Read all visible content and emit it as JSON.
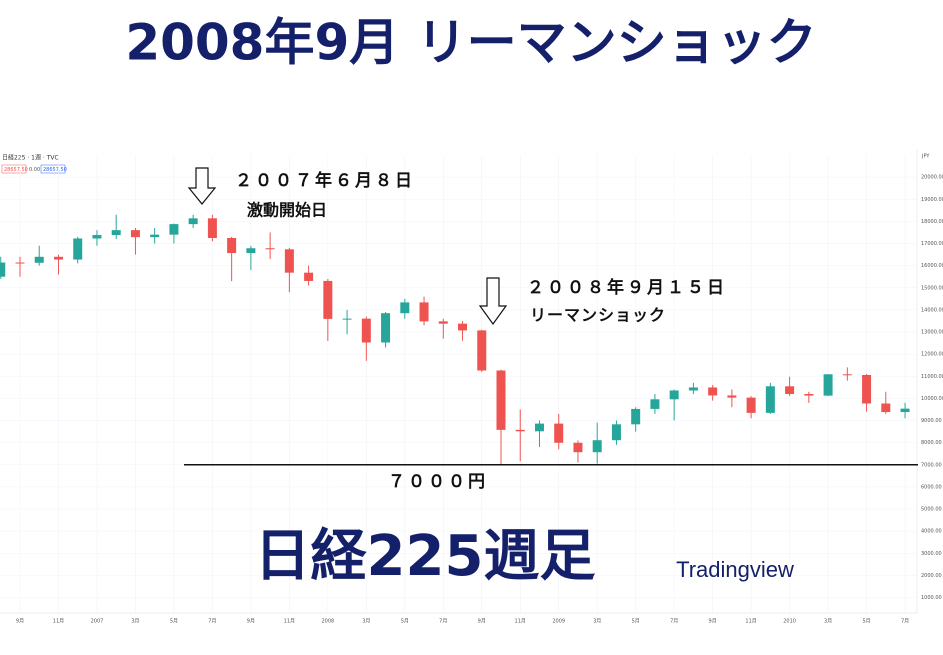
{
  "chart_data": {
    "type": "candlestick",
    "title": "2008年9月 リーマンショック",
    "subtitle": "日経225週足",
    "source": "Tradingview",
    "symbol": "日経225 · 1週 · TVC",
    "quote_labels": [
      "28657.50",
      "0.00",
      "28657.50"
    ],
    "currency": "JPY",
    "up_color": "#26a69a",
    "down_color": "#ef5350",
    "categories": [
      null,
      "9月",
      null,
      "11月",
      null,
      "2007",
      null,
      "3月",
      null,
      "5月",
      null,
      "7月",
      null,
      "9月",
      null,
      "11月",
      null,
      "2008",
      null,
      "3月",
      null,
      "5月",
      null,
      "7月",
      null,
      "9月",
      null,
      "11月",
      null,
      "2009",
      null,
      "3月",
      null,
      "5月",
      null,
      "7月",
      null,
      "9月",
      null,
      "11月",
      null,
      "2010",
      null,
      "3月",
      null,
      "5月",
      null,
      "7月"
    ],
    "open": [
      15500,
      16140,
      16128,
      16399,
      16274,
      17226,
      17383,
      17604,
      17288,
      17400,
      17876,
      18138,
      17249,
      16569,
      16786,
      16738,
      15681,
      15308,
      13592,
      13604,
      12526,
      13850,
      14339,
      13481,
      13377,
      13073,
      11260,
      8577,
      8512,
      8860,
      7994,
      7568,
      8110,
      8828,
      9523,
      9958,
      10357,
      10493,
      10133,
      10034,
      9345,
      10546,
      10198,
      10126,
      11089,
      11057,
      9768,
      9382
    ],
    "high": [
      16400,
      16400,
      16900,
      16500,
      17300,
      17600,
      18300,
      17700,
      17700,
      17900,
      18300,
      18300,
      17300,
      16900,
      17500,
      16800,
      16000,
      15400,
      14000,
      13700,
      13900,
      14500,
      14600,
      13600,
      13500,
      13100,
      11300,
      9500,
      9000,
      9300,
      8100,
      8900,
      9000,
      9600,
      10200,
      10400,
      10700,
      10600,
      10400,
      10100,
      10700,
      10980,
      10300,
      11100,
      11400,
      11100,
      10300,
      9800
    ],
    "low": [
      15400,
      15500,
      16000,
      15600,
      16100,
      16900,
      17200,
      16500,
      17000,
      17000,
      17700,
      17100,
      15300,
      15800,
      16300,
      14800,
      15100,
      12600,
      12900,
      11700,
      12300,
      13600,
      13300,
      12700,
      12600,
      11200,
      6990,
      7160,
      7800,
      7700,
      7100,
      7050,
      7900,
      8500,
      9300,
      9000,
      10200,
      9900,
      9600,
      9100,
      9300,
      10100,
      9800,
      10100,
      10800,
      9400,
      9300,
      9100
    ],
    "close": [
      16140,
      16128,
      16399,
      16274,
      17226,
      17383,
      17604,
      17288,
      17400,
      17876,
      18138,
      17249,
      16569,
      16786,
      16738,
      15681,
      15308,
      13592,
      13604,
      12526,
      13850,
      14339,
      13481,
      13377,
      13073,
      11260,
      8577,
      8512,
      8860,
      7994,
      7568,
      8110,
      8828,
      9523,
      9958,
      10357,
      10493,
      10133,
      10034,
      9345,
      10546,
      10198,
      10126,
      11089,
      11057,
      9768,
      9382,
      9537
    ],
    "ylim": [
      300,
      21000
    ],
    "yticks": [
      {
        "value": 1000,
        "label": "1000.00"
      },
      {
        "value": 2000,
        "label": "2000.00"
      },
      {
        "value": 3000,
        "label": "3000.00"
      },
      {
        "value": 4000,
        "label": "4000.00"
      },
      {
        "value": 5000,
        "label": "5000.00"
      },
      {
        "value": 6000,
        "label": "6000.00"
      },
      {
        "value": 7000,
        "label": "7000.00"
      },
      {
        "value": 8000,
        "label": "8000.00"
      },
      {
        "value": 9000,
        "label": "9000.00"
      },
      {
        "value": 10000,
        "label": "10000.00"
      },
      {
        "value": 11000,
        "label": "11000.00"
      },
      {
        "value": 12000,
        "label": "12000.00"
      },
      {
        "value": 13000,
        "label": "13000.00"
      },
      {
        "value": 14000,
        "label": "14000.00"
      },
      {
        "value": 15000,
        "label": "15000.00"
      },
      {
        "value": 16000,
        "label": "16000.00"
      },
      {
        "value": 17000,
        "label": "17000.00"
      },
      {
        "value": 18000,
        "label": "18000.00"
      },
      {
        "value": 19000,
        "label": "19000.00"
      },
      {
        "value": 20000,
        "label": "20000.00"
      }
    ],
    "hline": {
      "value": 7000,
      "label": "７０００円"
    },
    "annotations": [
      {
        "date": "２００７年６月８日",
        "text": "激動開始日"
      },
      {
        "date": "２００８年９月１５日",
        "text": "リーマンショック"
      }
    ]
  }
}
